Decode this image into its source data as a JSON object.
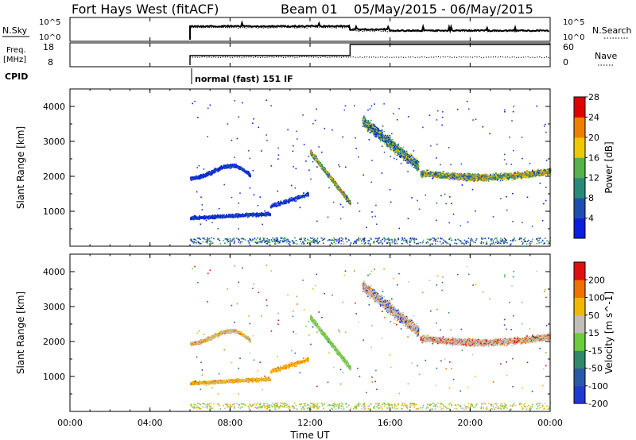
{
  "header": {
    "title": "Fort Hays West (fitACF)",
    "beam": "Beam 01",
    "dates": "05/May/2015 - 06/May/2015"
  },
  "strip_labels": {
    "nsky": "N.Sky",
    "nsky_ticks": [
      "10^5",
      "10^0"
    ],
    "nsearch": "N.Search",
    "nsearch_ticks": [
      "10^5",
      "10^0"
    ],
    "freq_label_1": "Freq.",
    "freq_label_2": "[MHz]",
    "freq_ticks": [
      "18",
      "8"
    ],
    "nave": "Nave",
    "nave_ticks": [
      "60",
      "0"
    ],
    "cpid": "CPID",
    "cpid_value": "normal (fast) 151 IF"
  },
  "chart_data": [
    {
      "type": "heatmap",
      "title": "",
      "ylabel": "Slant Range [km]",
      "yticks": [
        "1000",
        "2000",
        "3000",
        "4000"
      ],
      "colorbar_label": "Power [dB]",
      "colorbar_ticks": [
        "4",
        "8",
        "12",
        "16",
        "20",
        "24",
        "28"
      ],
      "colors": [
        "#0a1ee0",
        "#1e4fb0",
        "#2a8a7a",
        "#56b24a",
        "#f0c800",
        "#f08000",
        "#e00000"
      ],
      "ylim": [
        0,
        4500
      ],
      "features": [
        {
          "name": "early band lower",
          "x_range": [
            "06:00",
            "10:00"
          ],
          "y_range": [
            800,
            1000
          ]
        },
        {
          "name": "early band upper",
          "x_range": [
            "06:00",
            "09:00"
          ],
          "y_range": [
            1900,
            2500
          ]
        },
        {
          "name": "noon streak",
          "x_range": [
            "12:00",
            "14:00"
          ],
          "y_range": [
            1200,
            2800
          ]
        },
        {
          "name": "afternoon arc",
          "x_range": [
            "14:30",
            "17:30"
          ],
          "y_range": [
            2200,
            3800
          ]
        },
        {
          "name": "evening band",
          "x_range": [
            "17:30",
            "24:00"
          ],
          "y_range": [
            1800,
            2400
          ]
        }
      ]
    },
    {
      "type": "heatmap",
      "title": "",
      "ylabel": "Slant Range [km]",
      "yticks": [
        "1000",
        "2000",
        "3000",
        "4000"
      ],
      "colorbar_label": "Velocity [m s^-1]",
      "colorbar_ticks": [
        "200",
        "100",
        "50",
        "15",
        "-15",
        "-50",
        "-100",
        "-200"
      ],
      "colors": [
        "#1e3ad0",
        "#2a58a8",
        "#2f8a6a",
        "#6ccc3c",
        "#c0c0b8",
        "#f0b800",
        "#f07000",
        "#e01010"
      ],
      "ylim": [
        0,
        4500
      ],
      "xlabel": "Time UT",
      "xticks": [
        "00:00",
        "04:00",
        "08:00",
        "12:00",
        "16:00",
        "20:00",
        "00:00"
      ]
    }
  ]
}
